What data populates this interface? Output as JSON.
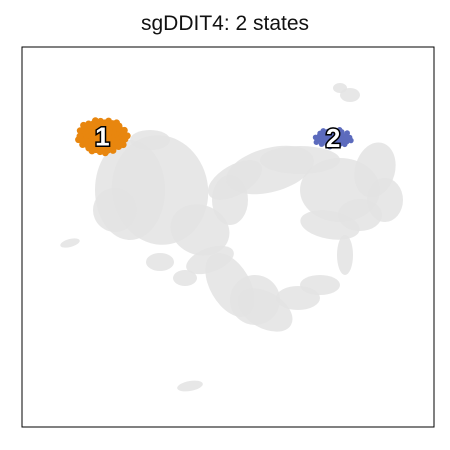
{
  "title": "sgDDIT4: 2 states",
  "chart_data": {
    "type": "scatter",
    "title": "sgDDIT4: 2 states",
    "xlabel": "",
    "ylabel": "",
    "xlim": [
      0,
      1
    ],
    "ylim": [
      0,
      1
    ],
    "grid": false,
    "legend": "none",
    "background_color": "#e3e3e3",
    "states": [
      {
        "label": "1",
        "color": "#e8860e",
        "x": 0.195,
        "y": 0.765
      },
      {
        "label": "2",
        "color": "#5c6bbd",
        "x": 0.755,
        "y": 0.76
      }
    ]
  }
}
